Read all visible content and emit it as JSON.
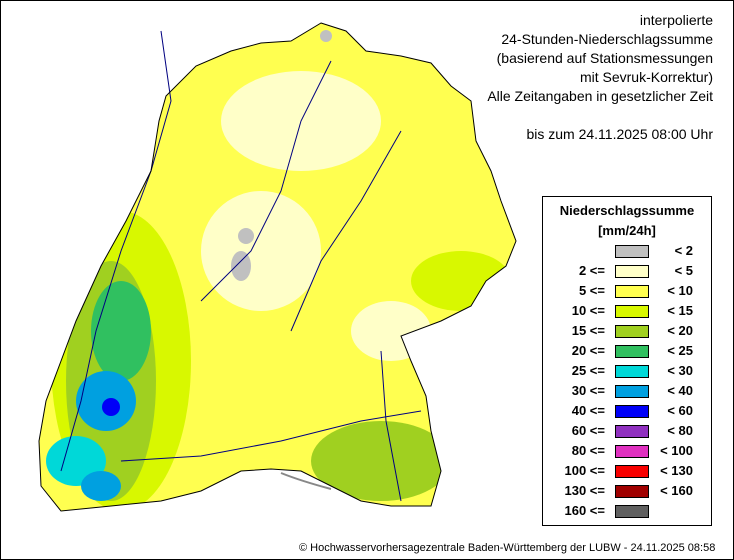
{
  "title_lines": [
    "interpolierte",
    "24-Stunden-Niederschlagssumme",
    "(basierend auf Stationsmessungen",
    "mit Sevruk-Korrektur)",
    "Alle Zeitangaben in gesetzlicher Zeit"
  ],
  "date_line": "bis zum 24.11.2025 08:00 Uhr",
  "legend": {
    "title": "Niederschlagssumme",
    "unit": "[mm/24h]",
    "items": [
      {
        "lo": "",
        "hi": "<   2",
        "color": "#c0c0c0"
      },
      {
        "lo": "2 <=",
        "hi": "<   5",
        "color": "#ffffc8"
      },
      {
        "lo": "5 <=",
        "hi": "<  10",
        "color": "#ffff50"
      },
      {
        "lo": "10 <=",
        "hi": "<  15",
        "color": "#d8f800"
      },
      {
        "lo": "15 <=",
        "hi": "<  20",
        "color": "#a0d020"
      },
      {
        "lo": "20 <=",
        "hi": "<  25",
        "color": "#30c060"
      },
      {
        "lo": "25 <=",
        "hi": "<  30",
        "color": "#00d8d8"
      },
      {
        "lo": "30 <=",
        "hi": "<  40",
        "color": "#00a0e0"
      },
      {
        "lo": "40 <=",
        "hi": "<  60",
        "color": "#0000f8"
      },
      {
        "lo": "60 <=",
        "hi": "<  80",
        "color": "#9030c0"
      },
      {
        "lo": "80 <=",
        "hi": "< 100",
        "color": "#e030c0"
      },
      {
        "lo": "100 <=",
        "hi": "< 130",
        "color": "#f80000"
      },
      {
        "lo": "130 <=",
        "hi": "< 160",
        "color": "#a00000"
      },
      {
        "lo": "160 <=",
        "hi": "",
        "color": "#606060"
      }
    ]
  },
  "footer": "© Hochwasservorhersagezentrale Baden-Württemberg der LUBW - 24.11.2025 08:58"
}
